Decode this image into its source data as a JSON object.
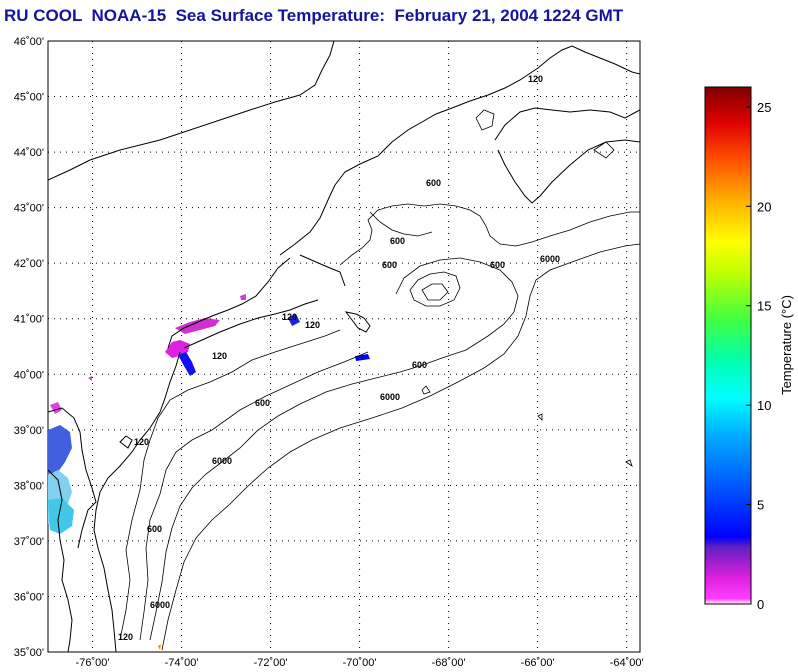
{
  "title": "RU COOL  NOAA-15  Sea Surface Temperature:  February 21, 2004 1224 GMT",
  "colors": {
    "title": "#1414a0",
    "frame": "#000000",
    "grid": "#000000",
    "land": "#000000"
  },
  "map": {
    "lat_labels": [
      "46˚00'",
      "45˚00'",
      "44˚00'",
      "43˚00'",
      "42˚00'",
      "41˚00'",
      "40˚00'",
      "39˚00'",
      "38˚00'",
      "37˚00'",
      "36˚00'",
      "35˚00'"
    ],
    "lon_labels": [
      "-76˚00'",
      "-74˚00'",
      "-72˚00'",
      "-70˚00'",
      "-68˚00'",
      "-66˚00'",
      "-64˚00'"
    ],
    "contour_labels": [
      "120",
      "120",
      "120",
      "120",
      "120",
      "120",
      "600",
      "600",
      "600",
      "600",
      "600",
      "600",
      "600",
      "6000",
      "6000",
      "6000",
      "6000"
    ]
  },
  "colorbar": {
    "label": "Temperature (°C)",
    "ticks": [
      "25",
      "20",
      "15",
      "10",
      "5",
      "0"
    ],
    "range": [
      0,
      26
    ]
  }
}
